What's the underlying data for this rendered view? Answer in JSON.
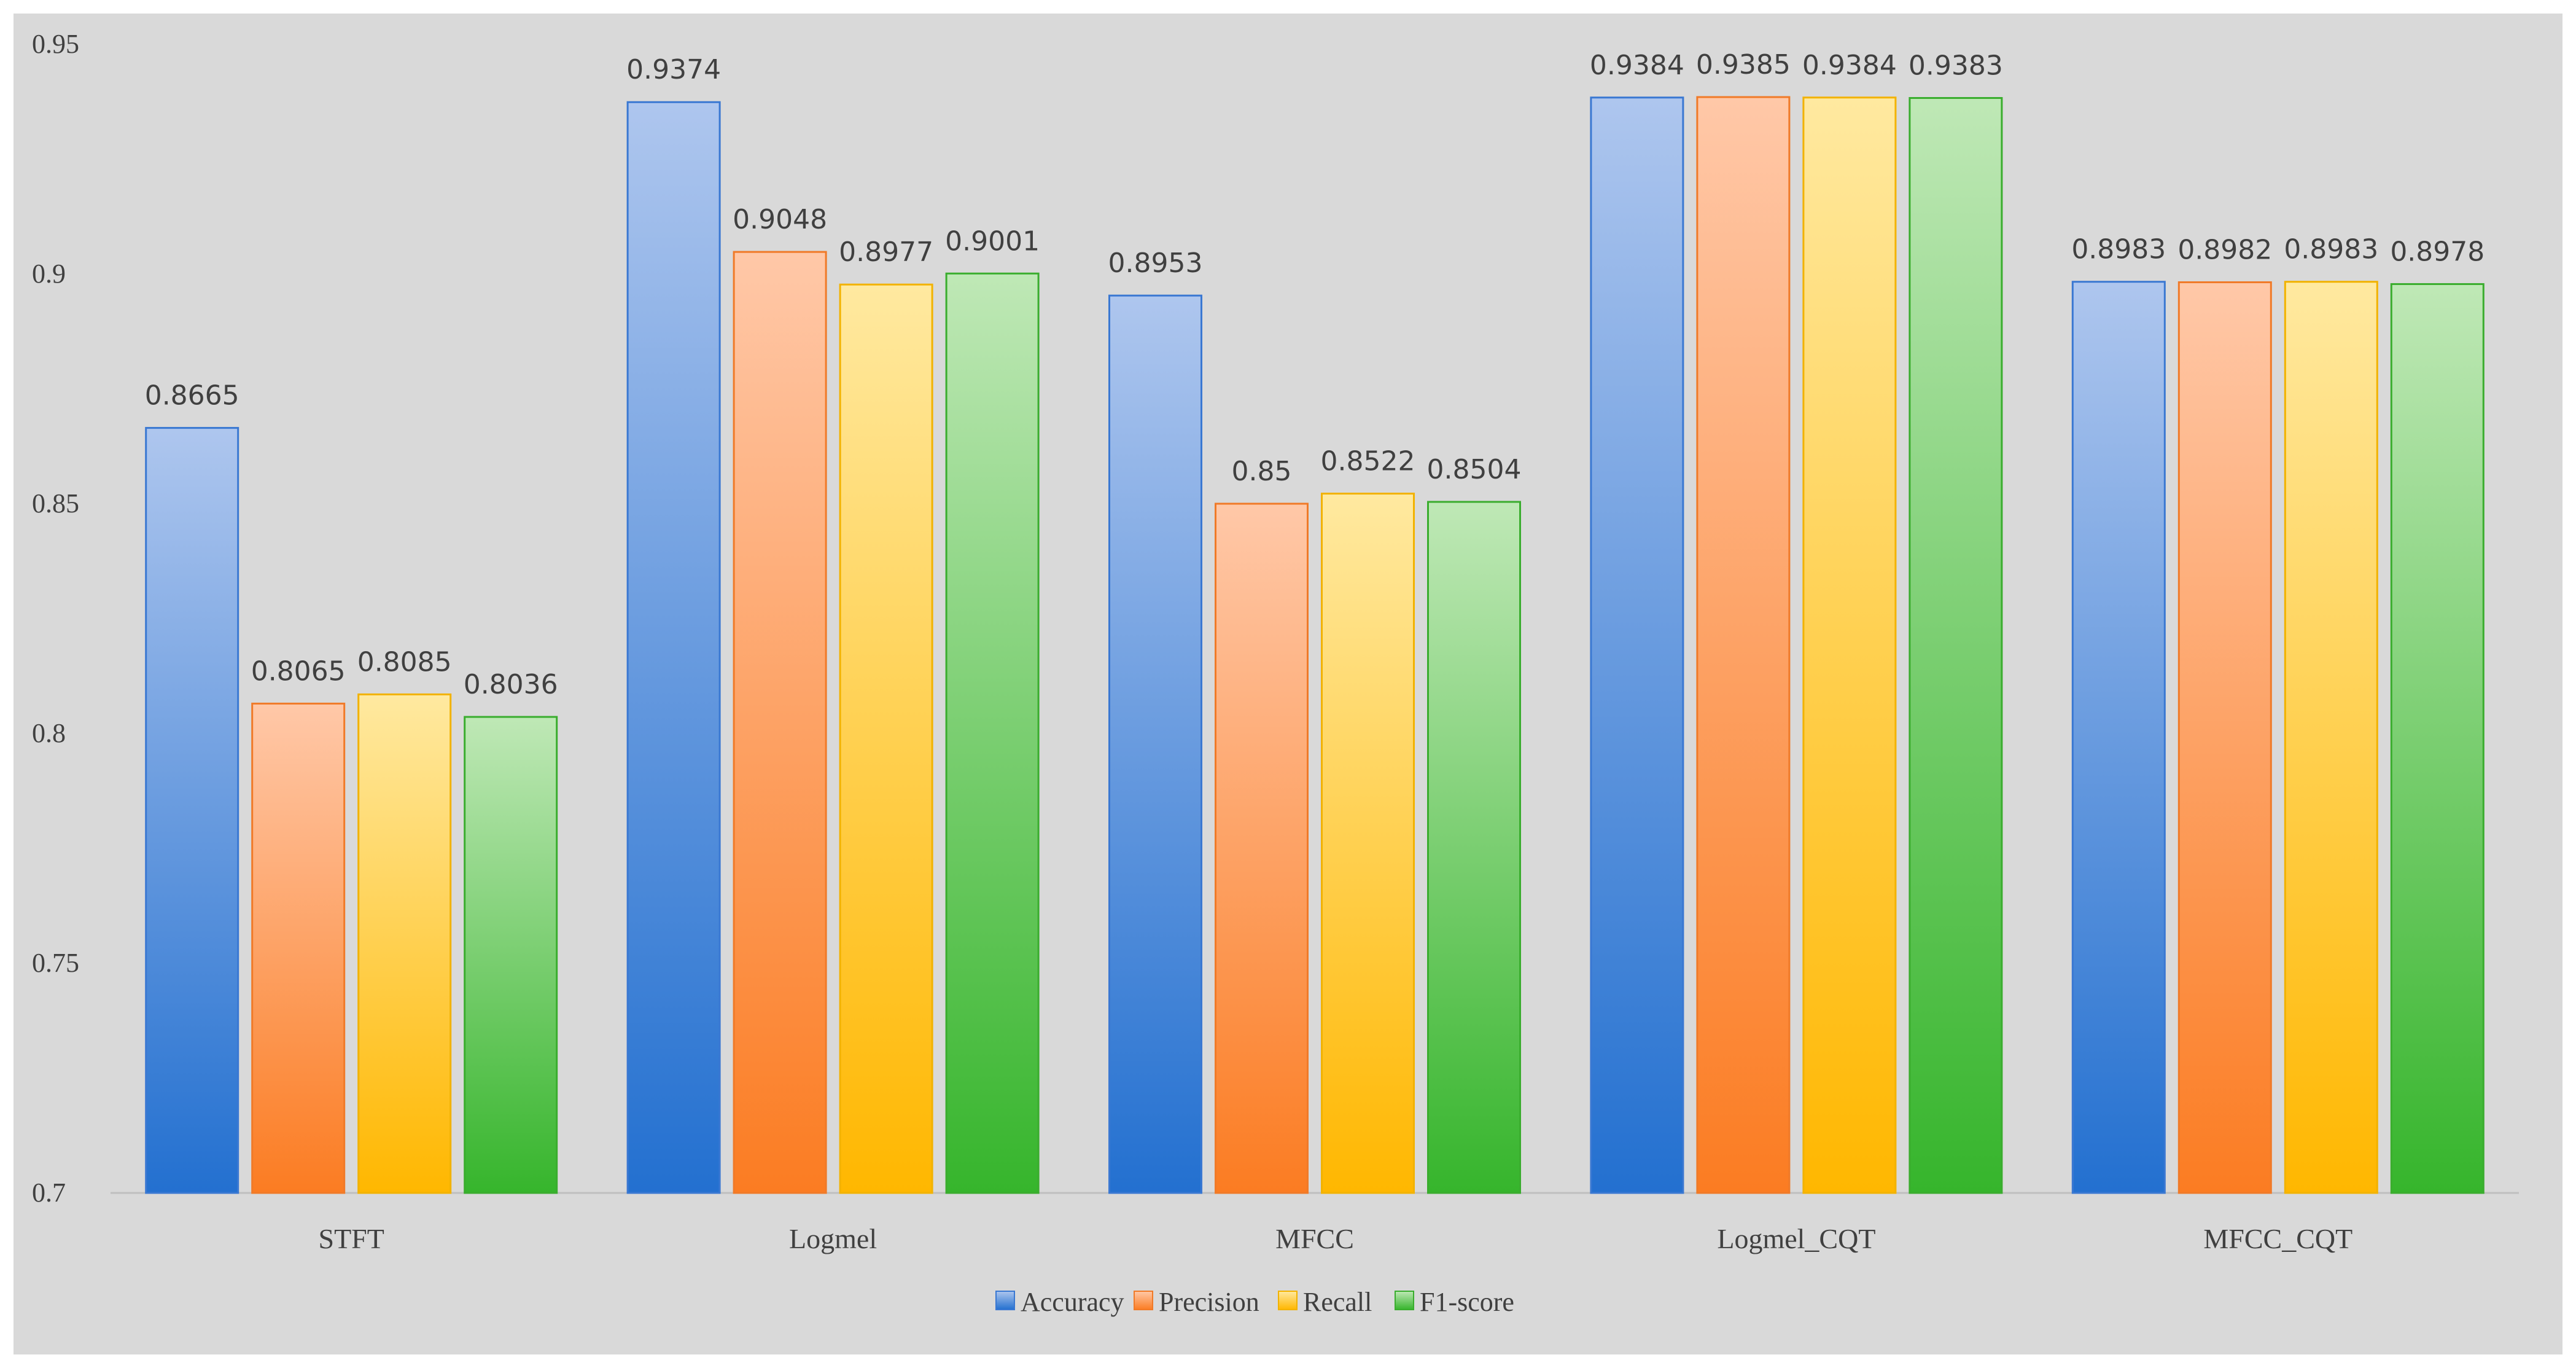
{
  "chart_data": {
    "type": "bar",
    "title": "",
    "xlabel": "",
    "ylabel": "",
    "ylim": [
      0.7,
      0.95
    ],
    "yticks": [
      "0.7",
      "0.75",
      "0.8",
      "0.85",
      "0.9",
      "0.95"
    ],
    "ytick_values": [
      0.7,
      0.75,
      0.8,
      0.85,
      0.9,
      0.95
    ],
    "grid": false,
    "legend_position": "bottom",
    "categories": [
      "STFT",
      "Logmel",
      "MFCC",
      "Logmel_CQT",
      "MFCC_CQT"
    ],
    "series": [
      {
        "name": "Accuracy",
        "values": [
          0.8665,
          0.9374,
          0.8953,
          0.9384,
          0.8983
        ],
        "labels": [
          "0.8665",
          "0.9374",
          "0.8953",
          "0.9384",
          "0.8983"
        ]
      },
      {
        "name": "Precision",
        "values": [
          0.8065,
          0.9048,
          0.85,
          0.9385,
          0.8982
        ],
        "labels": [
          "0.8065",
          "0.9048",
          "0.85",
          "0.9385",
          "0.8982"
        ]
      },
      {
        "name": "Recall",
        "values": [
          0.8085,
          0.8977,
          0.8522,
          0.9384,
          0.8983
        ],
        "labels": [
          "0.8085",
          "0.8977",
          "0.8522",
          "0.9384",
          "0.8983"
        ]
      },
      {
        "name": "F1-score",
        "values": [
          0.8036,
          0.9001,
          0.8504,
          0.9383,
          0.8978
        ],
        "labels": [
          "0.8036",
          "0.9001",
          "0.8504",
          "0.9383",
          "0.8978"
        ]
      }
    ],
    "colors": {
      "Accuracy": {
        "top": "#aec6ee",
        "bottom": "#2370d0",
        "stroke": "#3a78d2"
      },
      "Precision": {
        "top": "#ffc8a8",
        "bottom": "#fb7c22",
        "stroke": "#f07a28"
      },
      "Recall": {
        "top": "#ffe9a0",
        "bottom": "#ffb700",
        "stroke": "#f2b200"
      },
      "F1-score": {
        "top": "#bfe8b6",
        "bottom": "#36b52c",
        "stroke": "#3aad2e"
      }
    }
  }
}
